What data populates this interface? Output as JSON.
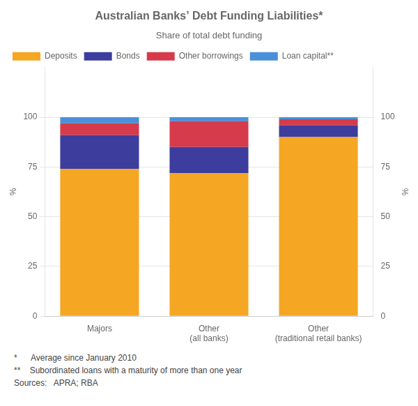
{
  "chart_data": {
    "type": "bar",
    "title": "Australian Banks’ Debt Funding Liabilities*",
    "subtitle": "Share of total debt funding",
    "categories": [
      "Majors",
      "Other\n(all banks)",
      "Other\n(traditional retail banks)"
    ],
    "series": [
      {
        "name": "Deposits",
        "color": "#F5A623",
        "values": [
          74,
          72,
          90
        ]
      },
      {
        "name": "Bonds",
        "color": "#3D3D9E",
        "values": [
          17,
          13,
          6
        ]
      },
      {
        "name": "Other borrowings",
        "color": "#D63B4B",
        "values": [
          6,
          13,
          3
        ]
      },
      {
        "name": "Loan capital**",
        "color": "#4A90D9",
        "values": [
          3,
          2,
          1
        ]
      }
    ],
    "stacked": true,
    "ylabel": "%",
    "y2label": "%",
    "ylim": [
      0,
      125
    ],
    "yticks": [
      0,
      25,
      50,
      75,
      100
    ],
    "y2lim": [
      0,
      125
    ],
    "y2ticks": [
      0,
      25,
      50,
      75,
      100
    ],
    "grid": true,
    "legend": "upper left",
    "footnotes": [
      "*      Average since January 2010",
      "**    Subordinated loans with a maturity of more than one year",
      "Sources:   APRA; RBA"
    ]
  }
}
